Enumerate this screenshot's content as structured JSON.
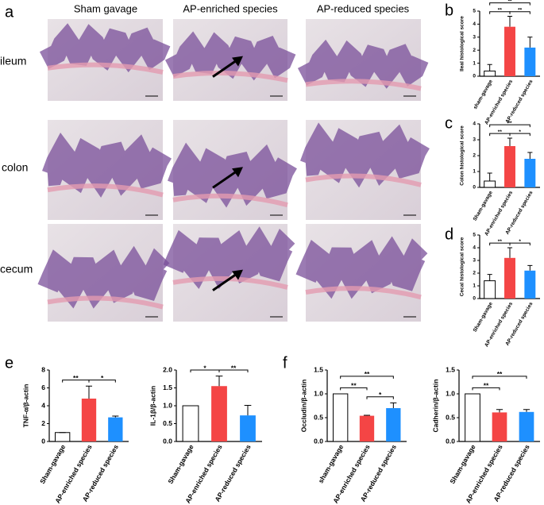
{
  "figure": {
    "panel_labels": [
      "a",
      "b",
      "c",
      "d",
      "e",
      "f"
    ],
    "columns": [
      "Sham gavage",
      "AP-enriched species",
      "AP-reduced species"
    ],
    "rows": [
      "ileum",
      "colon",
      "cecum"
    ]
  },
  "chart_data": [
    {
      "type": "bar",
      "y_label": "Ileal histological score",
      "categories": [
        "sham-gavage",
        "AP-enriched species",
        "AP-reduced species"
      ],
      "values": [
        0.4,
        3.8,
        2.2
      ],
      "errors": [
        0.5,
        0.8,
        0.8
      ],
      "colors": [
        "#ffffff",
        "#f44545",
        "#1e90ff"
      ],
      "ylim": [
        0,
        5
      ],
      "yticks": [
        0,
        1,
        2,
        3,
        4,
        5
      ],
      "brackets": [
        {
          "label": "**",
          "between": [
            0,
            1
          ]
        },
        {
          "label": "**",
          "between": [
            1,
            2
          ]
        },
        {
          "label": "**",
          "between": [
            0,
            2
          ]
        }
      ]
    },
    {
      "type": "bar",
      "y_label": "Colon histological score",
      "categories": [
        "Sham-gavage",
        "AP-enriched species",
        "AP-reduced species"
      ],
      "values": [
        0.4,
        2.6,
        1.8
      ],
      "errors": [
        0.5,
        0.5,
        0.4
      ],
      "colors": [
        "#ffffff",
        "#f44545",
        "#1e90ff"
      ],
      "ylim": [
        0,
        4
      ],
      "yticks": [
        0,
        1,
        2,
        3,
        4
      ],
      "brackets": [
        {
          "label": "**",
          "between": [
            0,
            1
          ]
        },
        {
          "label": "*",
          "between": [
            1,
            2
          ]
        },
        {
          "label": "**",
          "between": [
            0,
            2
          ]
        }
      ]
    },
    {
      "type": "bar",
      "y_label": "Cecal histological score",
      "categories": [
        "Sham-gavage",
        "AP-enriched species",
        "AP-reduced species"
      ],
      "values": [
        1.4,
        3.2,
        2.2
      ],
      "errors": [
        0.5,
        0.8,
        0.4
      ],
      "colors": [
        "#ffffff",
        "#f44545",
        "#1e90ff"
      ],
      "ylim": [
        0,
        5
      ],
      "yticks": [
        0,
        1,
        2,
        3,
        4,
        5
      ],
      "brackets": [
        {
          "label": "**",
          "between": [
            0,
            1
          ]
        },
        {
          "label": "*",
          "between": [
            1,
            2
          ]
        }
      ]
    },
    {
      "type": "bar",
      "y_label": "TNF-α/β-actin",
      "categories": [
        "Sham-gavage",
        "AP-enriched species",
        "AP-reduced species"
      ],
      "values": [
        1,
        4.8,
        2.7
      ],
      "errors": [
        0,
        1.4,
        0.15
      ],
      "colors": [
        "#ffffff",
        "#f44545",
        "#1e90ff"
      ],
      "ylim": [
        0,
        8
      ],
      "yticks": [
        0,
        2,
        4,
        6,
        8
      ],
      "brackets": [
        {
          "label": "**",
          "between": [
            0,
            1
          ]
        },
        {
          "label": "*",
          "between": [
            1,
            2
          ]
        }
      ]
    },
    {
      "type": "bar",
      "y_label": "IL-1β/β-actin",
      "categories": [
        "Sham-gavage",
        "AP-enriched species",
        "AP-reduced species"
      ],
      "values": [
        1.0,
        1.55,
        0.73
      ],
      "errors": [
        0,
        0.28,
        0.28
      ],
      "colors": [
        "#ffffff",
        "#f44545",
        "#1e90ff"
      ],
      "ylim": [
        0,
        2
      ],
      "yticks": [
        {
          "value": 0,
          "label": "0.0"
        },
        {
          "value": 0.5,
          "label": "0.5"
        },
        {
          "value": 1,
          "label": "1.0"
        },
        {
          "value": 1.5,
          "label": "1.5"
        },
        {
          "value": 2,
          "label": "2.0"
        }
      ],
      "brackets": [
        {
          "label": "*",
          "between": [
            0,
            1
          ]
        },
        {
          "label": "**",
          "between": [
            1,
            2
          ]
        }
      ]
    },
    {
      "type": "bar",
      "y_label": "Occludin/β-actin",
      "categories": [
        "sham-gavage",
        "AP-enriched species",
        "AP-reduced species"
      ],
      "values": [
        1.0,
        0.54,
        0.7
      ],
      "errors": [
        0,
        0.01,
        0.11
      ],
      "colors": [
        "#ffffff",
        "#f44545",
        "#1e90ff"
      ],
      "ylim": [
        0,
        1.5
      ],
      "yticks": [
        {
          "value": 0,
          "label": "0.0"
        },
        {
          "value": 0.5,
          "label": "0.5"
        },
        {
          "value": 1,
          "label": "1.0"
        },
        {
          "value": 1.5,
          "label": "1.5"
        }
      ],
      "brackets": [
        {
          "label": "**",
          "between": [
            0,
            1
          ]
        },
        {
          "label": "*",
          "between": [
            1,
            2
          ]
        },
        {
          "label": "**",
          "between": [
            0,
            2
          ]
        }
      ]
    },
    {
      "type": "bar",
      "y_label": "Cadherin/β-actin",
      "categories": [
        "Sham-gavage",
        "AP-enriched species",
        "AP-reduced species"
      ],
      "values": [
        1.0,
        0.61,
        0.62
      ],
      "errors": [
        0,
        0.06,
        0.05
      ],
      "colors": [
        "#ffffff",
        "#f44545",
        "#1e90ff"
      ],
      "ylim": [
        0,
        1.5
      ],
      "yticks": [
        {
          "value": 0,
          "label": "0.0"
        },
        {
          "value": 0.5,
          "label": "0.5"
        },
        {
          "value": 1,
          "label": "1.0"
        },
        {
          "value": 1.5,
          "label": "1.5"
        }
      ],
      "brackets": [
        {
          "label": "**",
          "between": [
            0,
            1
          ]
        },
        {
          "label": "**",
          "between": [
            0,
            2
          ]
        }
      ]
    }
  ]
}
